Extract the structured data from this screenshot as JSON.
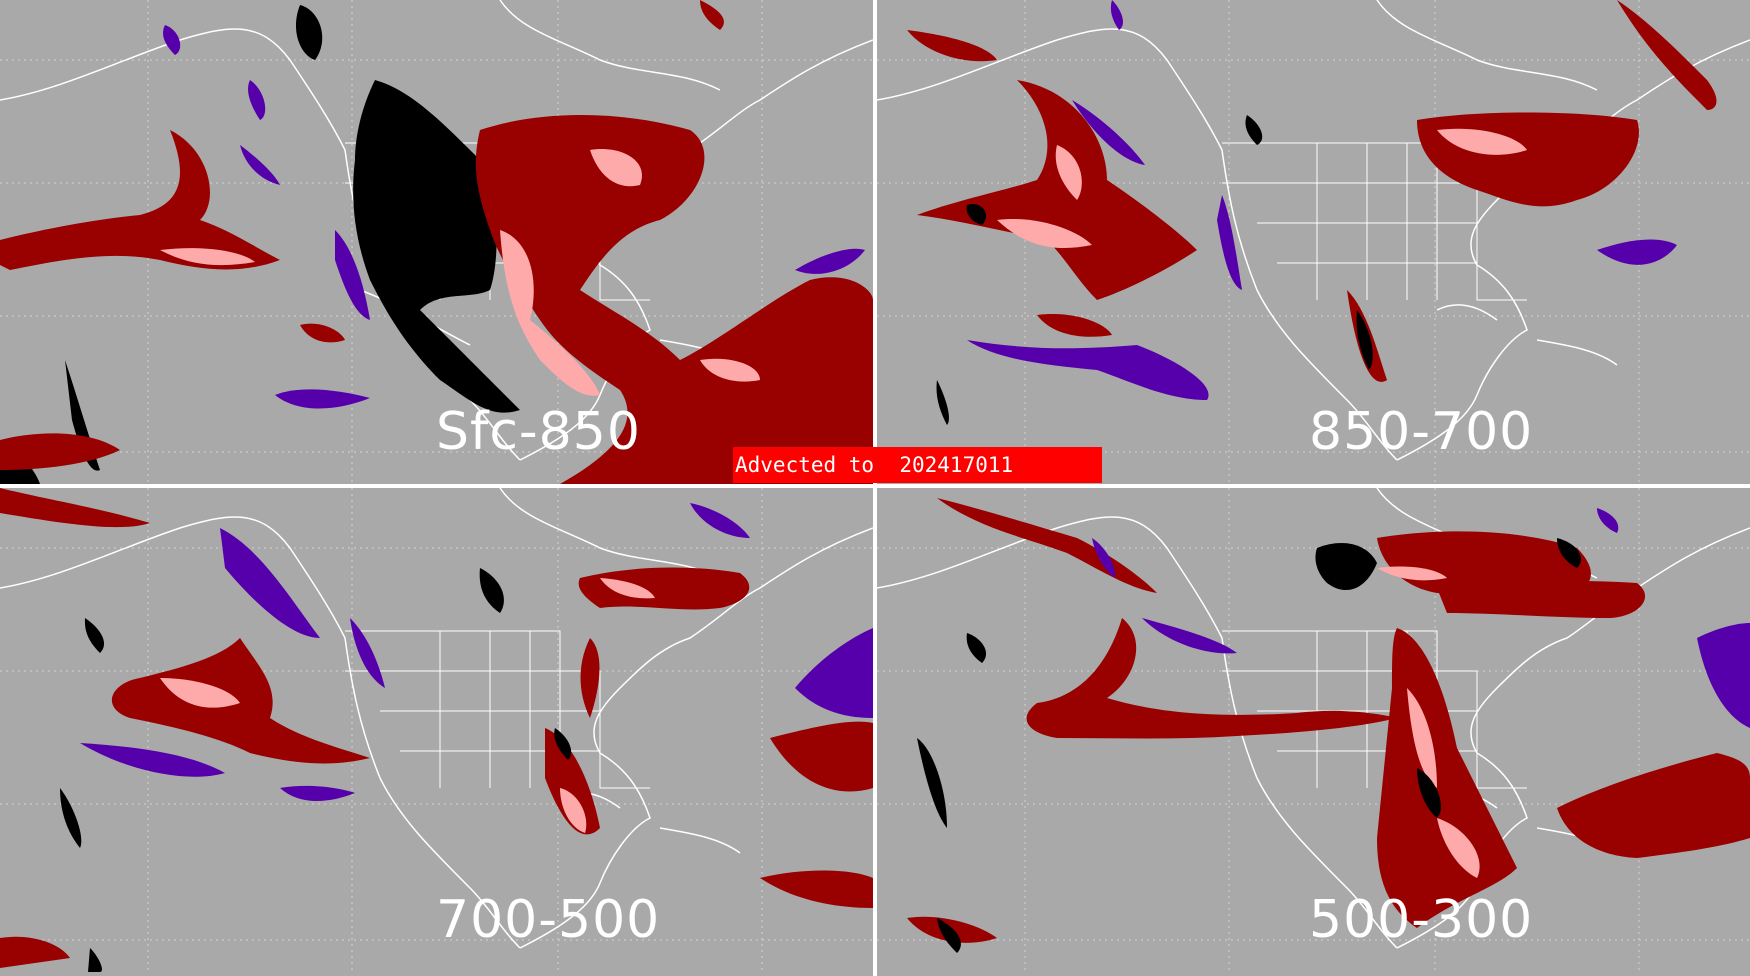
{
  "banner": {
    "text": "Advected to  202417011"
  },
  "panels": [
    {
      "label": "Sfc-850"
    },
    {
      "label": "850-700"
    },
    {
      "label": "700-500"
    },
    {
      "label": "500-300"
    }
  ],
  "colors": {
    "background": "#a9a9a9",
    "dark_red": "#990000",
    "pink": "#ffaaaa",
    "purple": "#5500aa",
    "black": "#000000",
    "coastline": "#ffffff",
    "banner": "#ff0000"
  }
}
